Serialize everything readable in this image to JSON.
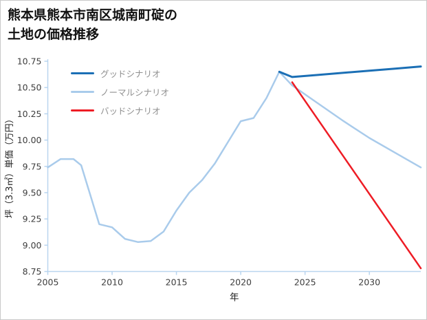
{
  "page": {
    "title_line1": "熊本県熊本市南区城南町碇の",
    "title_line2": "土地の価格推移"
  },
  "chart_data": {
    "type": "line",
    "title": "熊本県熊本市南区城南町碇の土地の価格推移",
    "xlabel": "年",
    "ylabel": "坪（3.3㎡）単価（万円）",
    "xlim": [
      2005,
      2034
    ],
    "ylim": [
      8.75,
      10.75
    ],
    "x_ticks": [
      2005,
      2010,
      2015,
      2020,
      2025,
      2030
    ],
    "y_ticks": [
      8.75,
      9.0,
      9.25,
      9.5,
      9.75,
      10.0,
      10.25,
      10.5,
      10.75
    ],
    "grid": false,
    "legend_position": "top-left",
    "axis_color": "#b9d5ef",
    "tick_label_color": "#3d3d3d",
    "series": [
      {
        "name": "グッドシナリオ",
        "color": "#1b6fb5",
        "width": 3,
        "points": [
          [
            2023,
            10.65
          ],
          [
            2024,
            10.6
          ],
          [
            2026,
            10.62
          ],
          [
            2028,
            10.64
          ],
          [
            2030,
            10.66
          ],
          [
            2032,
            10.68
          ],
          [
            2034,
            10.7
          ]
        ]
      },
      {
        "name": "ノーマルシナリオ",
        "color": "#a9cbeb",
        "width": 2.5,
        "points": [
          [
            2005,
            9.74
          ],
          [
            2006,
            9.82
          ],
          [
            2007,
            9.82
          ],
          [
            2007.6,
            9.76
          ],
          [
            2008,
            9.6
          ],
          [
            2009,
            9.2
          ],
          [
            2010,
            9.17
          ],
          [
            2011,
            9.06
          ],
          [
            2012,
            9.03
          ],
          [
            2013,
            9.04
          ],
          [
            2014,
            9.13
          ],
          [
            2015,
            9.33
          ],
          [
            2016,
            9.5
          ],
          [
            2017,
            9.62
          ],
          [
            2018,
            9.78
          ],
          [
            2019,
            9.98
          ],
          [
            2020,
            10.18
          ],
          [
            2021,
            10.21
          ],
          [
            2022,
            10.4
          ],
          [
            2023,
            10.65
          ],
          [
            2024,
            10.52
          ],
          [
            2026,
            10.35
          ],
          [
            2028,
            10.18
          ],
          [
            2030,
            10.02
          ],
          [
            2032,
            9.88
          ],
          [
            2034,
            9.74
          ]
        ]
      },
      {
        "name": "バッドシナリオ",
        "color": "#ee1c25",
        "width": 2.5,
        "points": [
          [
            2024,
            10.55
          ],
          [
            2034,
            8.78
          ]
        ]
      }
    ]
  }
}
